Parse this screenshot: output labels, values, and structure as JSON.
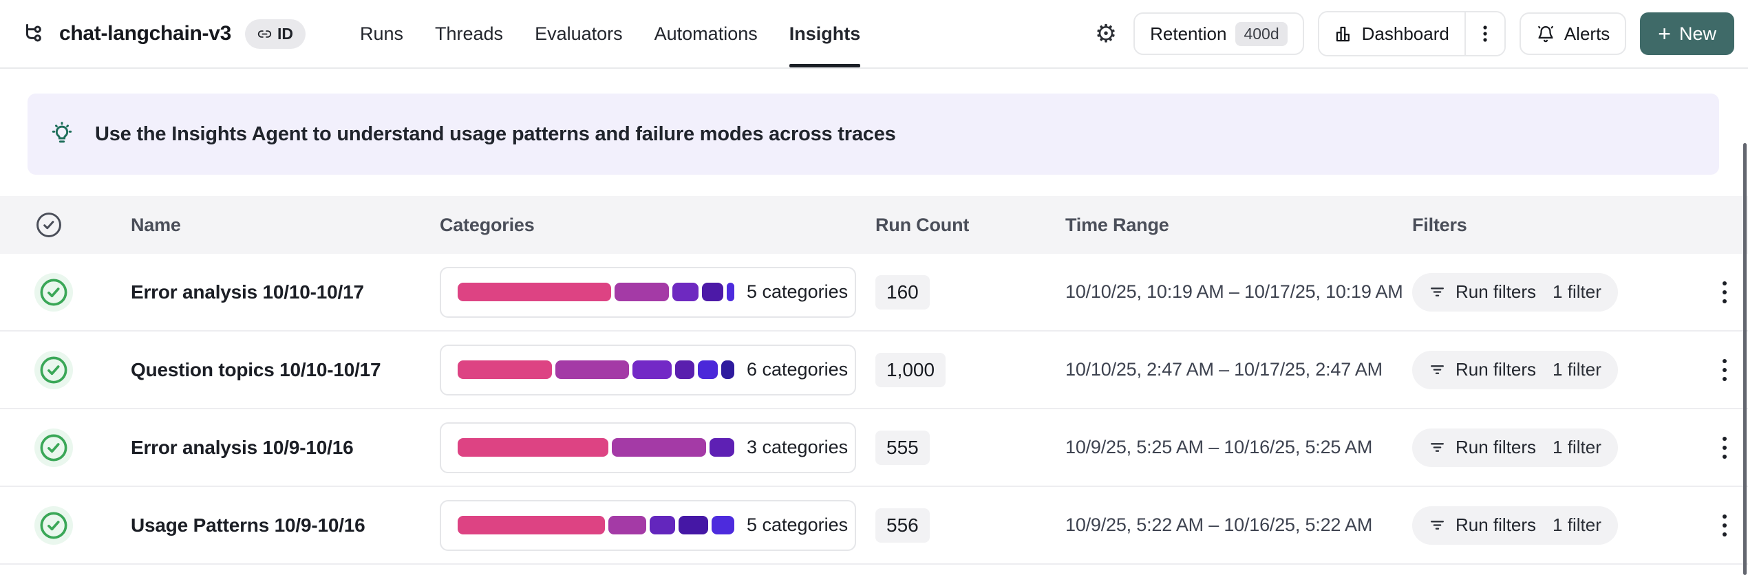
{
  "colors": {
    "accent_teal": "#3f6a68",
    "banner_bg": "#f2f0fc",
    "banner_icon": "#1e6e5a",
    "table_header_bg": "#f4f4f6",
    "chip_gray": "#f2f2f4",
    "check_green": "#3aa757"
  },
  "icons": {
    "gear": "⚙",
    "plus": "+"
  },
  "header": {
    "project_name": "chat-langchain-v3",
    "id_label": "ID",
    "tabs": [
      {
        "label": "Runs"
      },
      {
        "label": "Threads"
      },
      {
        "label": "Evaluators"
      },
      {
        "label": "Automations"
      },
      {
        "label": "Insights",
        "active": true
      }
    ],
    "actions": {
      "retention_label": "Retention",
      "retention_value": "400d",
      "dashboard_label": "Dashboard",
      "alerts_label": "Alerts",
      "new_label": "New"
    }
  },
  "banner": {
    "text": "Use the Insights Agent to understand usage patterns and failure modes across traces"
  },
  "table": {
    "columns": [
      "Name",
      "Categories",
      "Run Count",
      "Time Range",
      "Filters"
    ],
    "rows": [
      {
        "name": "Error analysis 10/10-10/17",
        "categories_label": "5 categories",
        "segments": [
          {
            "color": "#dd4383",
            "pct": 56
          },
          {
            "color": "#a43aa6",
            "pct": 20
          },
          {
            "color": "#6e29c0",
            "pct": 9.5
          },
          {
            "color": "#4c19a7",
            "pct": 7.8
          },
          {
            "color": "#4d2bdd",
            "pct": 2.7
          }
        ],
        "run_count": "160",
        "time_range": "10/10/25, 10:19 AM – 10/17/25, 10:19 AM",
        "filter_label": "Run filters",
        "filter_count": "1 filter"
      },
      {
        "name": "Question topics 10/10-10/17",
        "categories_label": "6 categories",
        "segments": [
          {
            "color": "#dd4383",
            "pct": 36
          },
          {
            "color": "#a43aa6",
            "pct": 28
          },
          {
            "color": "#7329c6",
            "pct": 15
          },
          {
            "color": "#5a1fae",
            "pct": 7.5
          },
          {
            "color": "#4b28d9",
            "pct": 7.5
          },
          {
            "color": "#2e1b9e",
            "pct": 5
          }
        ],
        "run_count": "1,000",
        "time_range": "10/10/25, 2:47 AM – 10/17/25, 2:47 AM",
        "filter_label": "Run filters",
        "filter_count": "1 filter"
      },
      {
        "name": "Error analysis 10/9-10/16",
        "categories_label": "3 categories",
        "segments": [
          {
            "color": "#dd4383",
            "pct": 55
          },
          {
            "color": "#a43aa6",
            "pct": 34.5
          },
          {
            "color": "#5e20b4",
            "pct": 9
          }
        ],
        "run_count": "555",
        "time_range": "10/9/25, 5:25 AM – 10/16/25, 5:25 AM",
        "filter_label": "Run filters",
        "filter_count": "1 filter"
      },
      {
        "name": "Usage Patterns 10/9-10/16",
        "categories_label": "5 categories",
        "segments": [
          {
            "color": "#dd4383",
            "pct": 55
          },
          {
            "color": "#a43aa6",
            "pct": 14
          },
          {
            "color": "#6326bd",
            "pct": 9.5
          },
          {
            "color": "#4517a5",
            "pct": 11
          },
          {
            "color": "#4d2bdd",
            "pct": 8.5
          }
        ],
        "run_count": "556",
        "time_range": "10/9/25, 5:22 AM – 10/16/25, 5:22 AM",
        "filter_label": "Run filters",
        "filter_count": "1 filter"
      }
    ]
  }
}
